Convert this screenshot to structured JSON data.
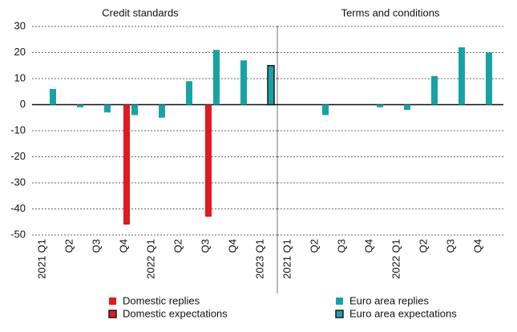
{
  "chart_data": [
    {
      "type": "bar",
      "title": "Credit standards",
      "categories": [
        "2021 Q1",
        "Q2",
        "Q3",
        "Q4",
        "2022 Q1",
        "Q2",
        "Q3",
        "Q4",
        "2023 Q1"
      ],
      "series": [
        {
          "name": "Domestic replies",
          "color": "#e2191f",
          "values": [
            null,
            null,
            null,
            -46,
            null,
            null,
            -43,
            null,
            null
          ]
        },
        {
          "name": "Domestic expectations",
          "color": "#e2191f",
          "edgecolor": "#1a1a1a",
          "values": [
            null,
            null,
            null,
            null,
            null,
            null,
            null,
            null,
            null
          ]
        },
        {
          "name": "Euro area replies",
          "color": "#17a3a6",
          "values": [
            6,
            -1,
            -3,
            -4,
            -5,
            9,
            21,
            17,
            null
          ]
        },
        {
          "name": "Euro area expectations",
          "color": "#17a3a6",
          "edgecolor": "#1a1a1a",
          "values": [
            null,
            null,
            null,
            null,
            null,
            null,
            null,
            null,
            15
          ]
        }
      ],
      "ylim": [
        -50,
        30
      ],
      "yticks": [
        -50,
        -40,
        -30,
        -20,
        -10,
        0,
        10,
        20,
        30
      ],
      "grid": true
    },
    {
      "type": "bar",
      "title": "Terms and conditions",
      "categories": [
        "2021 Q1",
        "Q2",
        "Q3",
        "Q4",
        "2022 Q1",
        "Q2",
        "Q3",
        "Q4"
      ],
      "series": [
        {
          "color": "#17a3a6",
          "values": [
            0,
            -4,
            0,
            -1,
            -2,
            11,
            22,
            20
          ]
        }
      ],
      "ylim": [
        -50,
        30
      ],
      "yticks": [
        -50,
        -40,
        -30,
        -20,
        -10,
        0,
        10,
        20,
        30
      ],
      "grid": true
    }
  ]
}
